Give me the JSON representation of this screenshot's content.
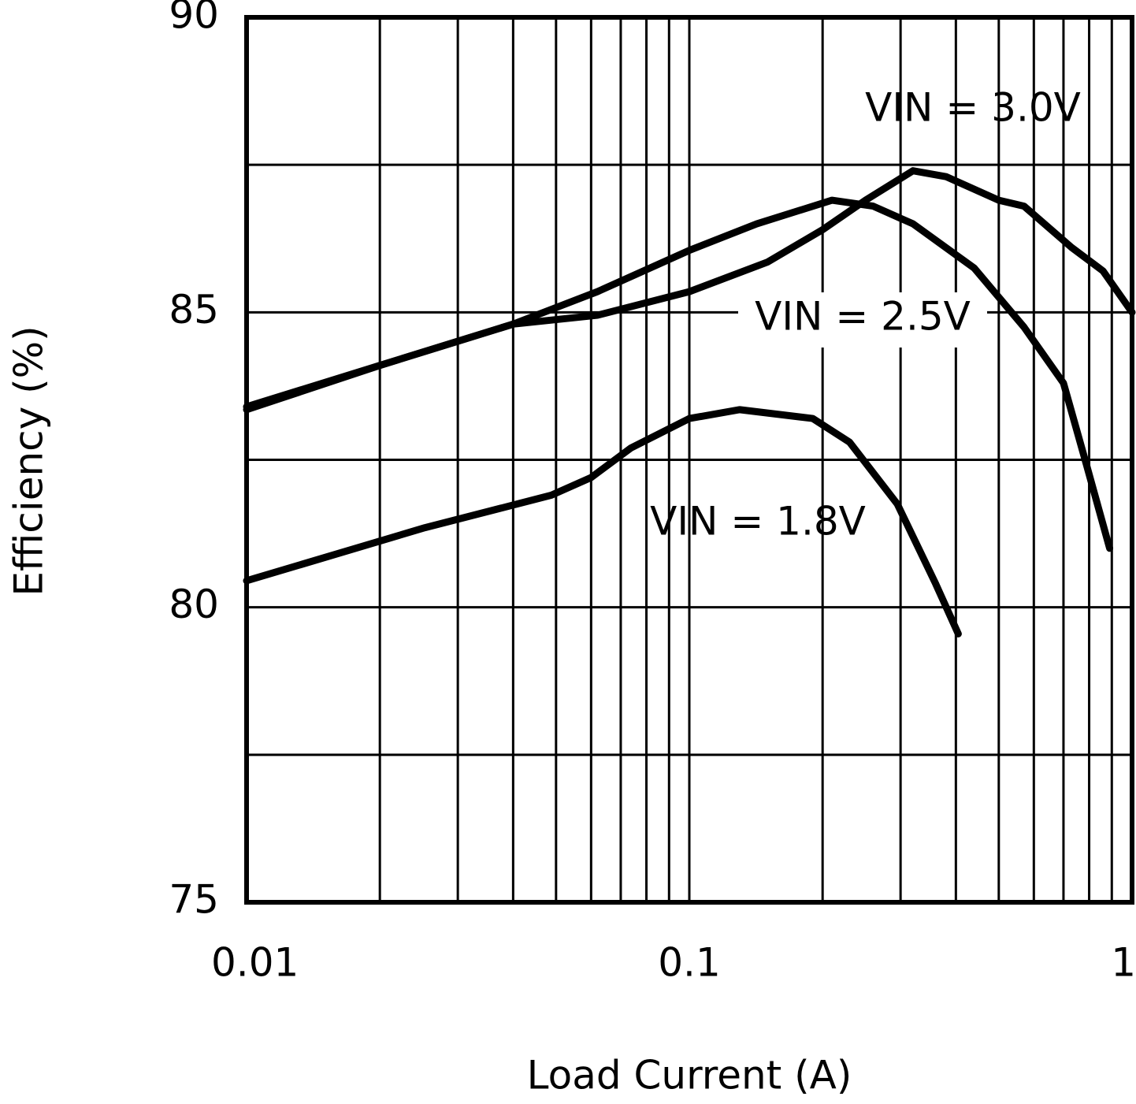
{
  "chart_data": {
    "type": "line",
    "xlabel": "Load Current (A)",
    "ylabel": "Efficiency (%)",
    "xscale": "log",
    "xlim": [
      0.01,
      1
    ],
    "xticks": [
      0.01,
      0.1,
      1
    ],
    "x_minor_ticks": [
      0.02,
      0.03,
      0.04,
      0.05,
      0.06,
      0.07,
      0.08,
      0.09,
      0.2,
      0.3,
      0.4,
      0.5,
      0.6,
      0.7,
      0.8,
      0.9
    ],
    "ylim": [
      75,
      90
    ],
    "yticks": [
      75,
      80,
      85,
      90
    ],
    "y_minor_ticks": [
      77.5,
      82.5,
      87.5
    ],
    "grid": true,
    "series": [
      {
        "name": "VIN = 3.0V",
        "color": "#000000",
        "x": [
          0.01,
          0.02,
          0.04,
          0.062,
          0.1,
          0.15,
          0.2,
          0.25,
          0.32,
          0.38,
          0.5,
          0.57,
          0.73,
          0.86,
          1.0
        ],
        "values": [
          83.35,
          84.1,
          84.8,
          84.95,
          85.35,
          85.85,
          86.4,
          86.9,
          87.4,
          87.3,
          86.9,
          86.8,
          86.1,
          85.7,
          85.0
        ]
      },
      {
        "name": "VIN = 2.5V",
        "color": "#000000",
        "x": [
          0.01,
          0.02,
          0.04,
          0.062,
          0.1,
          0.142,
          0.21,
          0.26,
          0.32,
          0.44,
          0.57,
          0.7,
          0.79,
          0.89
        ],
        "values": [
          83.4,
          84.1,
          84.8,
          85.35,
          86.05,
          86.5,
          86.9,
          86.8,
          86.5,
          85.75,
          84.75,
          83.8,
          82.4,
          81.0
        ]
      },
      {
        "name": "VIN = 1.8V",
        "color": "#000000",
        "x": [
          0.01,
          0.0253,
          0.0488,
          0.06,
          0.0738,
          0.1,
          0.13,
          0.19,
          0.23,
          0.295,
          0.36,
          0.405
        ],
        "values": [
          80.45,
          81.35,
          81.9,
          82.2,
          82.7,
          83.2,
          83.35,
          83.2,
          82.8,
          81.75,
          80.4,
          79.55
        ]
      }
    ]
  }
}
